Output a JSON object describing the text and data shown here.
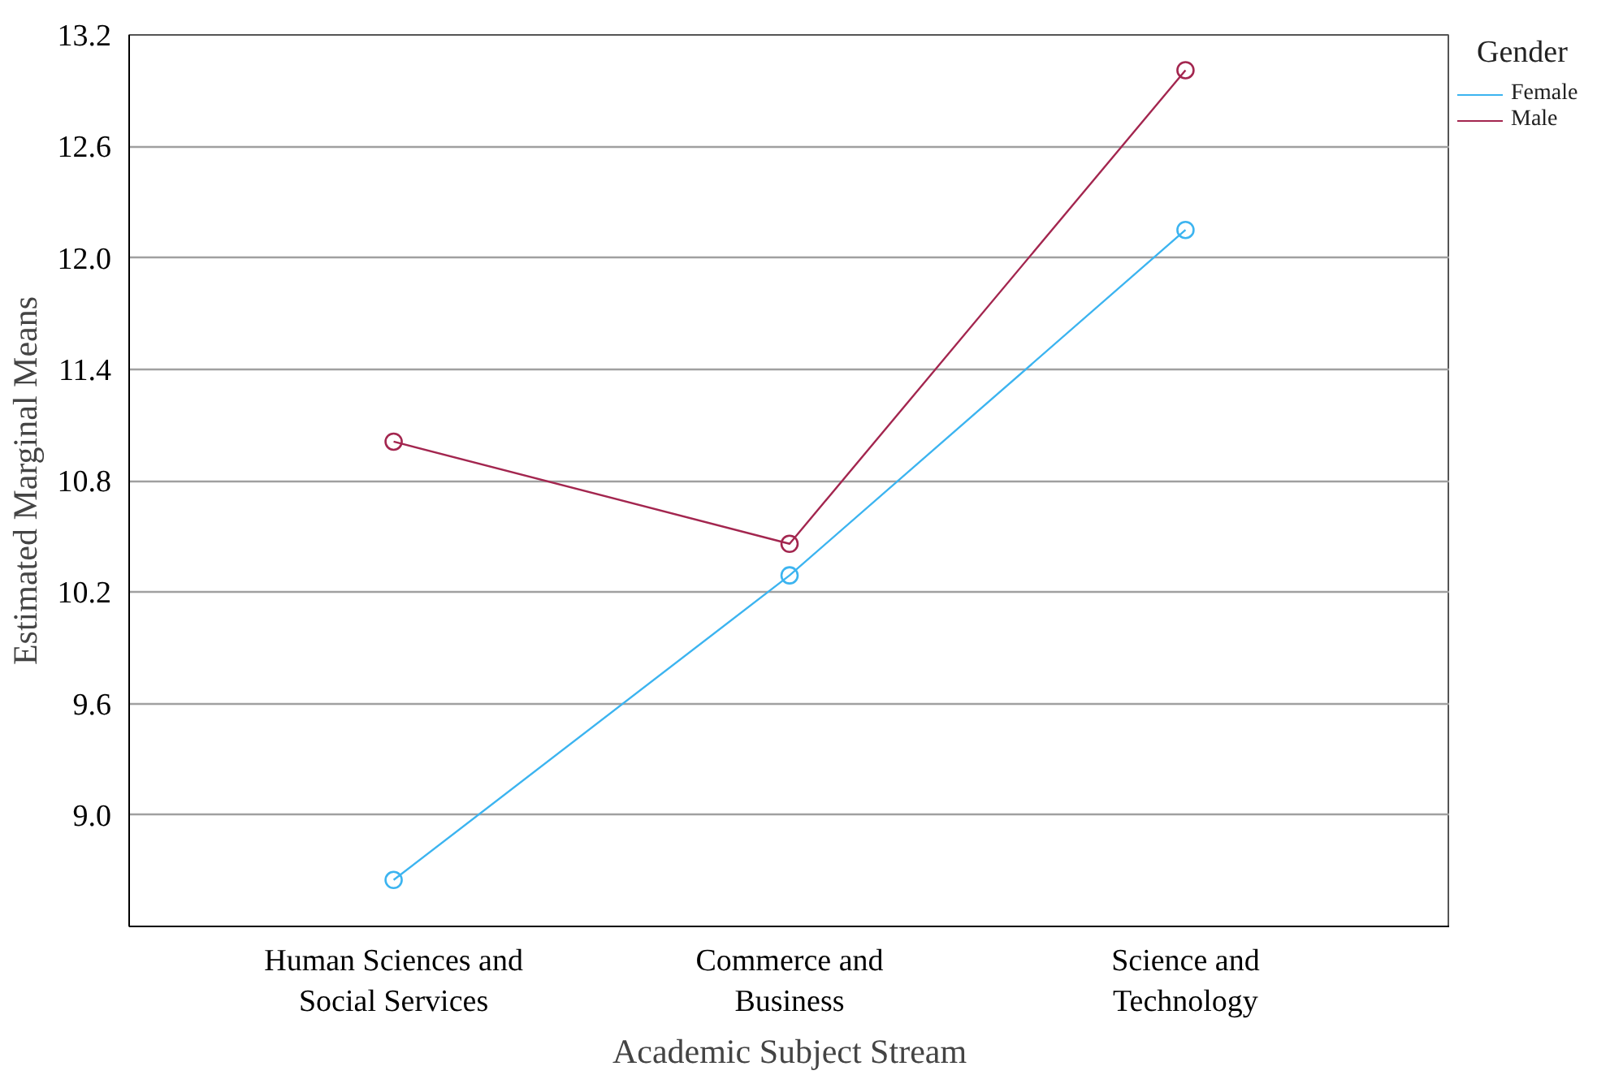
{
  "chart_data": {
    "type": "line",
    "xlabel": "Academic Subject Stream",
    "ylabel": "Estimated Marginal Means",
    "legend_title": "Gender",
    "legend": "top right",
    "grid": "y",
    "marker": "circle",
    "categories": [
      "Human Sciences and Social Services",
      "Commerce and Business",
      "Science and Technology"
    ],
    "ylim": [
      8.4,
      13.2
    ],
    "yticks": [
      {
        "value": 9.0,
        "label": "9.0"
      },
      {
        "value": 9.6,
        "label": "9.6"
      },
      {
        "value": 10.2,
        "label": "10.2"
      },
      {
        "value": 10.8,
        "label": "10.8"
      },
      {
        "value": 11.4,
        "label": "11.4"
      },
      {
        "value": 12.0,
        "label": "12.0"
      },
      {
        "value": 12.6,
        "label": "12.6"
      },
      {
        "value": 13.2,
        "label": "13.2"
      }
    ],
    "series": [
      {
        "name": "Female",
        "color": "#3cb4f0",
        "values": [
          8.65,
          10.29,
          12.15
        ]
      },
      {
        "name": "Male",
        "color": "#a3264f",
        "values": [
          11.01,
          10.46,
          13.01
        ]
      }
    ]
  }
}
